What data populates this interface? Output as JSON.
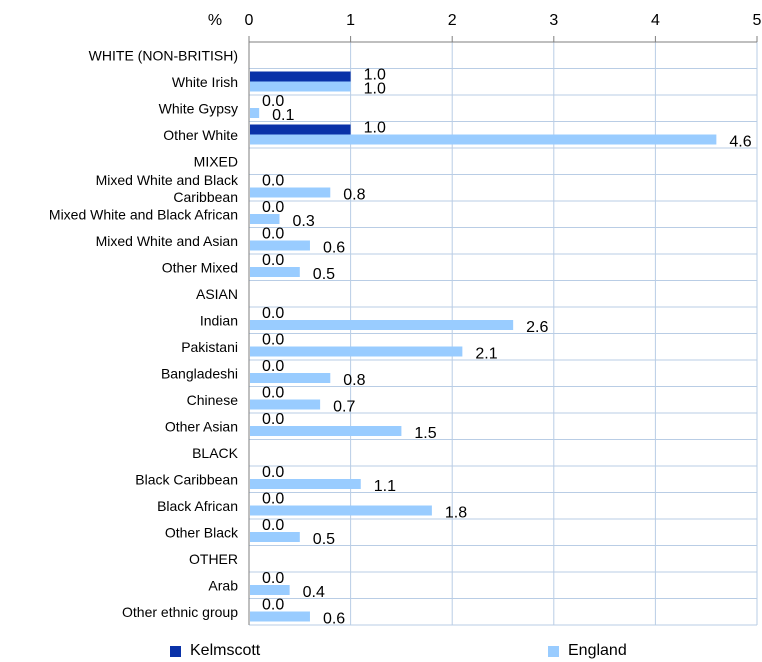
{
  "chart_data": {
    "type": "bar",
    "orientation": "horizontal",
    "xlabel": "%",
    "xlim": [
      0,
      5
    ],
    "ticks": [
      "0",
      "1",
      "2",
      "3",
      "4",
      "5"
    ],
    "grid": true,
    "legend_position": "bottom",
    "categories": [
      "WHITE (NON-BRITISH)",
      "White Irish",
      "White Gypsy",
      "Other White",
      "MIXED",
      "Mixed White and Black Caribbean",
      "Mixed White and Black African",
      "Mixed White and Asian",
      "Other Mixed",
      "ASIAN",
      "Indian",
      "Pakistani",
      "Bangladeshi",
      "Chinese",
      "Other Asian",
      "BLACK",
      "Black Caribbean",
      "Black African",
      "Other Black",
      "OTHER",
      "Arab",
      "Other ethnic group"
    ],
    "category_lines": [
      [
        "WHITE (NON-BRITISH)"
      ],
      [
        "White Irish"
      ],
      [
        "White Gypsy"
      ],
      [
        "Other White"
      ],
      [
        "MIXED"
      ],
      [
        "Mixed White and Black",
        "Caribbean"
      ],
      [
        "Mixed White and Black African"
      ],
      [
        "Mixed White and Asian"
      ],
      [
        "Other Mixed"
      ],
      [
        "ASIAN"
      ],
      [
        "Indian"
      ],
      [
        "Pakistani"
      ],
      [
        "Bangladeshi"
      ],
      [
        "Chinese"
      ],
      [
        "Other Asian"
      ],
      [
        "BLACK"
      ],
      [
        "Black Caribbean"
      ],
      [
        "Black African"
      ],
      [
        "Other Black"
      ],
      [
        "OTHER"
      ],
      [
        "Arab"
      ],
      [
        "Other ethnic group"
      ]
    ],
    "series": [
      {
        "name": "Kelmscott",
        "color": "#0a32a8",
        "values": [
          null,
          1.0,
          0.0,
          1.0,
          null,
          0.0,
          0.0,
          0.0,
          0.0,
          null,
          0.0,
          0.0,
          0.0,
          0.0,
          0.0,
          null,
          0.0,
          0.0,
          0.0,
          null,
          0.0,
          0.0
        ],
        "labels": [
          "",
          "1.0",
          "0.0",
          "1.0",
          "",
          "0.0",
          "0.0",
          "0.0",
          "0.0",
          "",
          "0.0",
          "0.0",
          "0.0",
          "0.0",
          "0.0",
          "",
          "0.0",
          "0.0",
          "0.0",
          "",
          "0.0",
          "0.0"
        ]
      },
      {
        "name": "England",
        "color": "#99ccff",
        "values": [
          null,
          1.0,
          0.1,
          4.6,
          null,
          0.8,
          0.3,
          0.6,
          0.5,
          null,
          2.6,
          2.1,
          0.8,
          0.7,
          1.5,
          null,
          1.1,
          1.8,
          0.5,
          null,
          0.4,
          0.6
        ],
        "labels": [
          "",
          "1.0",
          "0.1",
          "4.6",
          "",
          "0.8",
          "0.3",
          "0.6",
          "0.5",
          "",
          "2.6",
          "2.1",
          "0.8",
          "0.7",
          "1.5",
          "",
          "1.1",
          "1.8",
          "0.5",
          "",
          "0.4",
          "0.6"
        ]
      }
    ]
  }
}
